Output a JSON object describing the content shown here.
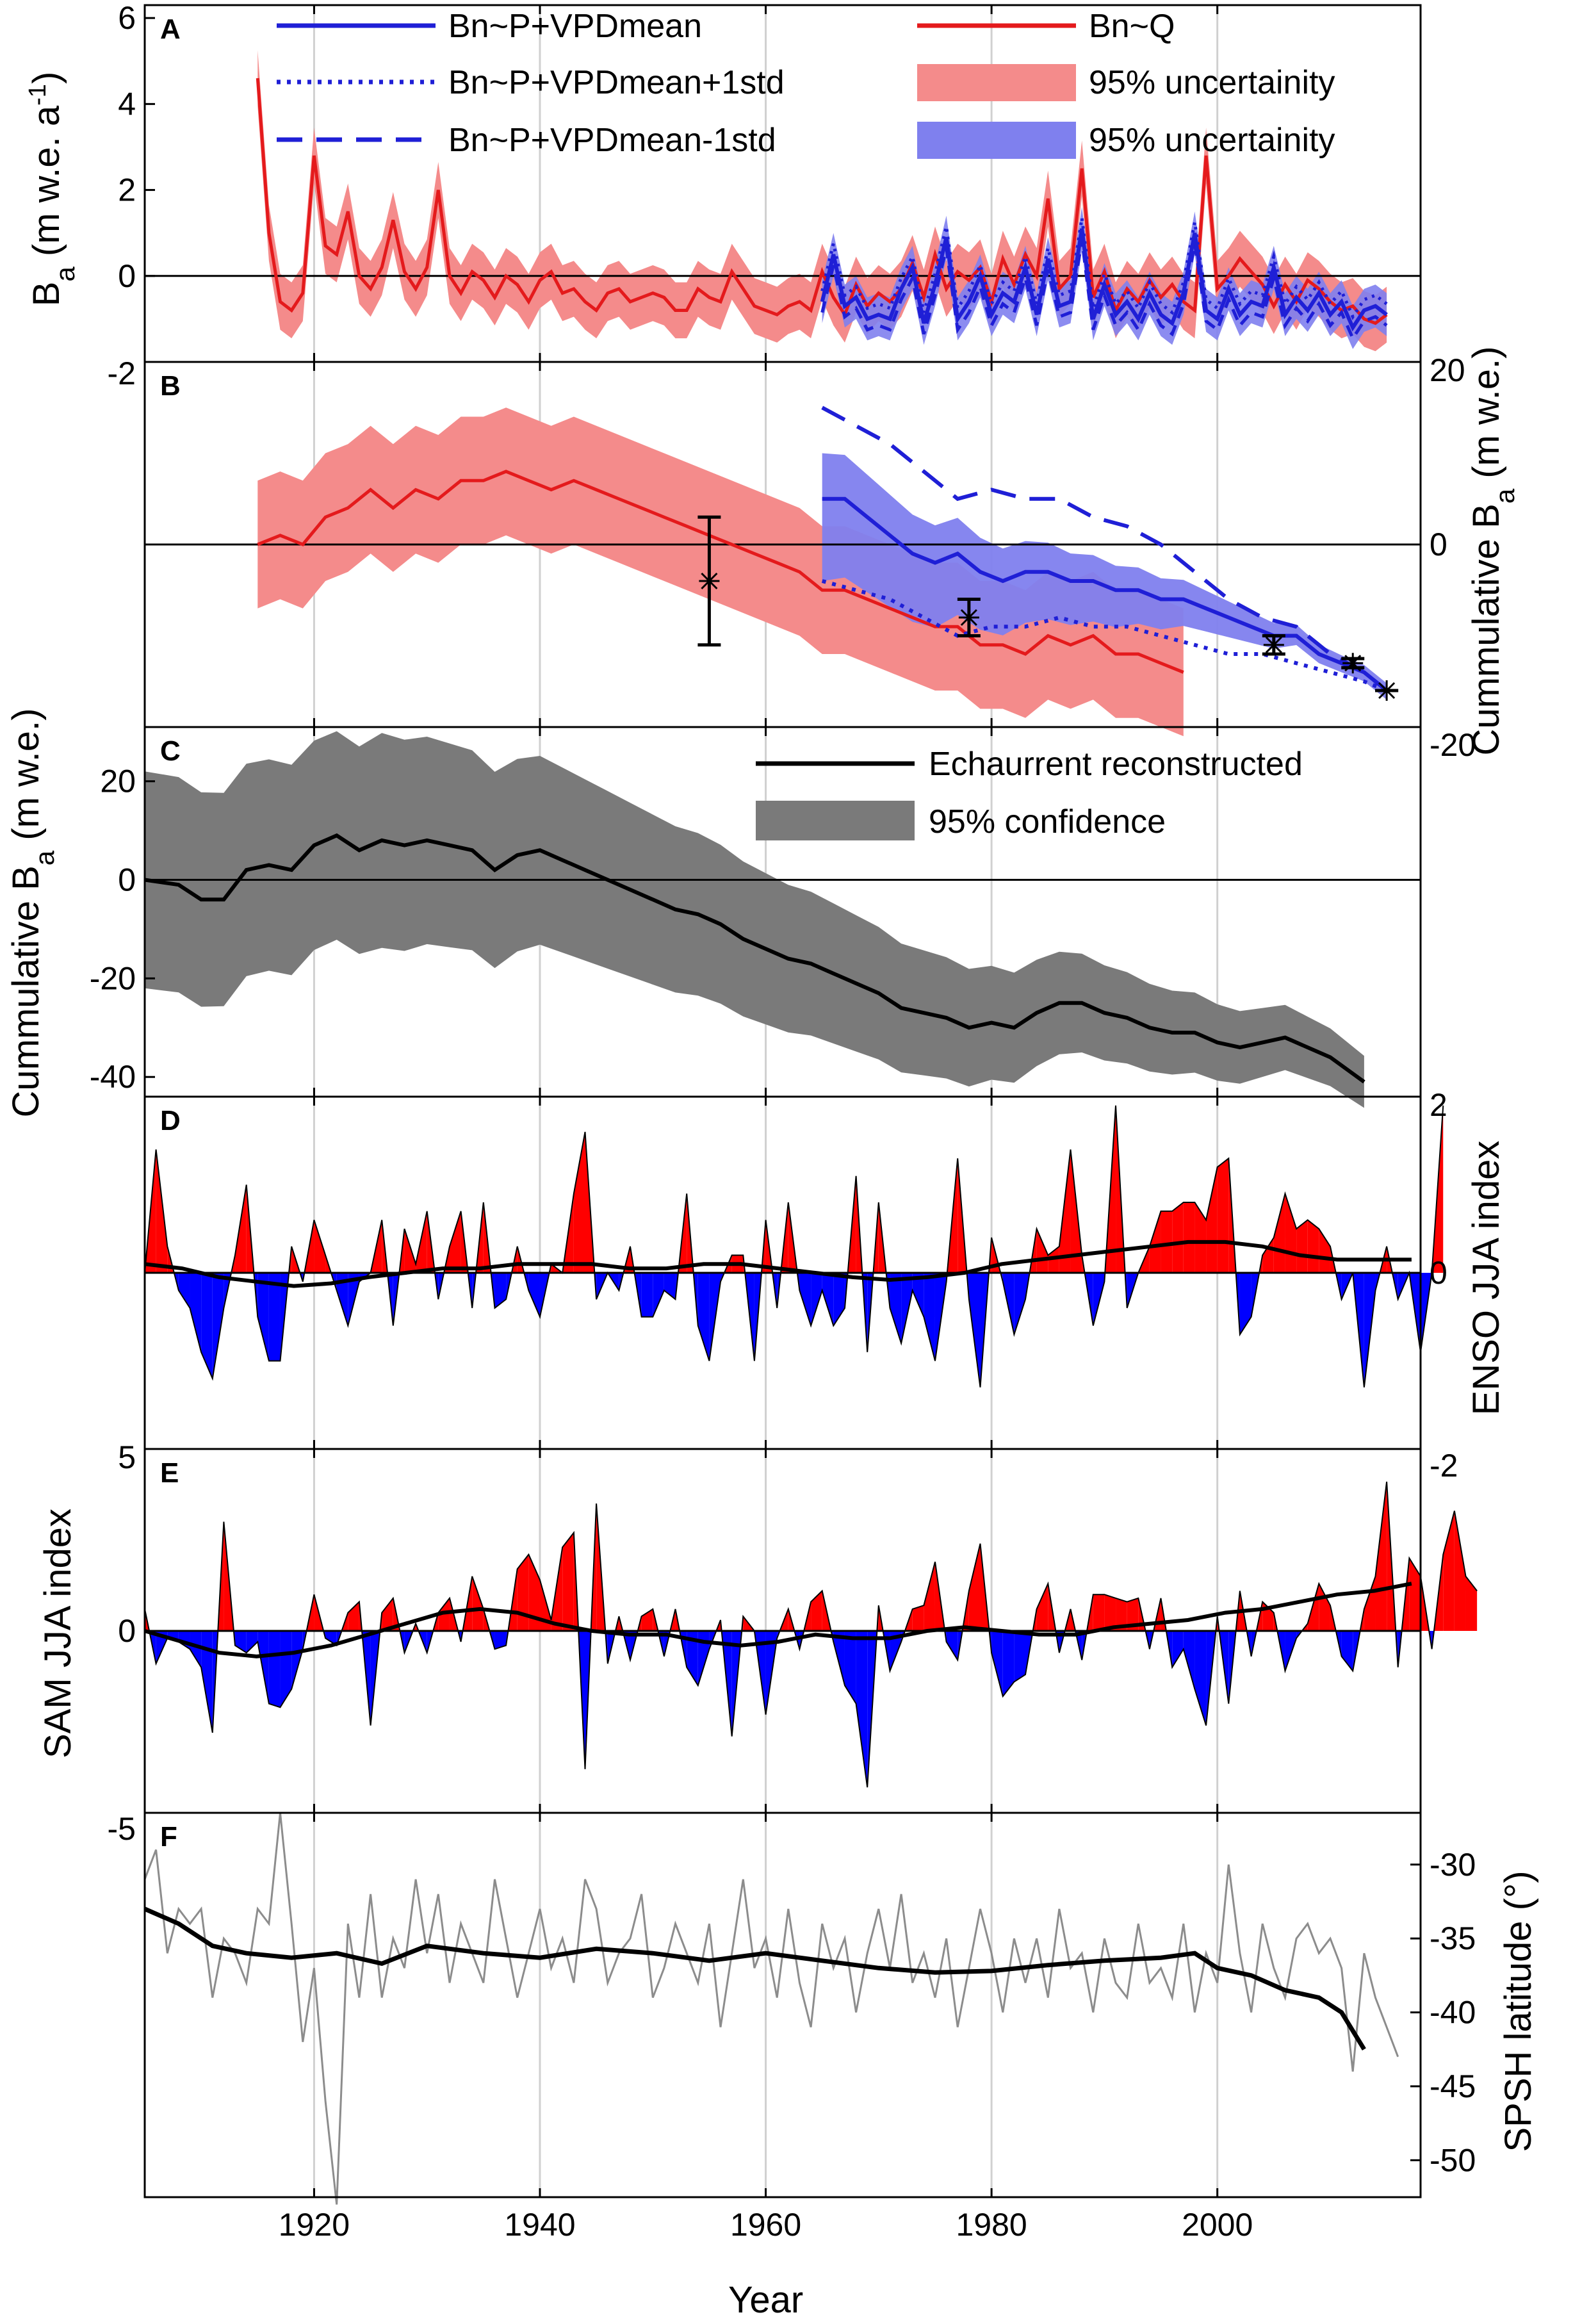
{
  "colors": {
    "red": "#e41a1c",
    "red_band": "#f48b8b",
    "blue": "#1f1fd6",
    "blue_band": "#7f80ee",
    "gray_band": "#7a7a7a",
    "gray_line": "#8c8c8c",
    "enso_pos": "#ff0000",
    "enso_neg": "#0000ff",
    "black": "#000000"
  },
  "chart_data": [
    {
      "panel": "A",
      "type": "line",
      "ylabel": "B_a (m w.e. a^-1)",
      "ylim": [
        -2,
        6.3
      ],
      "yticks": [
        -2,
        0,
        2,
        4,
        6
      ],
      "legend": [
        {
          "label": "Bn~P+VPDmean",
          "style": "solid-blue"
        },
        {
          "label": "Bn~P+VPDmean+1std",
          "style": "dotted-blue"
        },
        {
          "label": "Bn~P+VPDmean-1std",
          "style": "dashed-blue"
        },
        {
          "label": "Bn~Q",
          "style": "solid-red"
        },
        {
          "label": "95% uncertainity",
          "style": "red-band"
        },
        {
          "label": "95% uncertainity",
          "style": "blue-band"
        }
      ],
      "series": [
        {
          "name": "Bn~Q",
          "x_start": 1915,
          "values": [
            4.6,
            1.0,
            -0.6,
            -0.8,
            -0.4,
            2.8,
            0.7,
            0.5,
            1.5,
            0.0,
            -0.3,
            0.2,
            1.3,
            0.1,
            -0.3,
            0.2,
            2.0,
            0.0,
            -0.4,
            0.1,
            -0.1,
            -0.5,
            0.0,
            -0.2,
            -0.6,
            -0.1,
            0.1,
            -0.4,
            -0.3,
            -0.6,
            -0.8,
            -0.4,
            -0.3,
            -0.6,
            -0.5,
            -0.4,
            -0.5,
            -0.8,
            -0.8,
            -0.3,
            -0.5,
            -0.6,
            0.1,
            -0.3,
            -0.7,
            -0.8,
            -0.9,
            -0.7,
            -0.6,
            -0.8,
            0.1,
            -0.5,
            -0.9,
            -0.2,
            -0.7,
            -0.4,
            -0.6,
            -0.3,
            0.3,
            -0.5,
            0.5,
            -0.3,
            0.1,
            -0.1,
            0.2,
            -0.6,
            0.4,
            -0.2,
            0.5,
            0.0,
            1.8,
            -0.3,
            0.0,
            2.5,
            -0.5,
            0.1,
            -0.8,
            -0.3,
            -0.6,
            -0.1,
            -0.5,
            -0.2,
            -0.6,
            -0.8,
            2.8,
            -0.3,
            0.0,
            0.4,
            0.1,
            -0.2,
            -0.7,
            -0.2,
            -0.6,
            -0.1,
            -0.3,
            -0.6,
            -0.8,
            -0.7,
            -1.0,
            -1.1,
            -0.9
          ]
        },
        {
          "name": "Bn~P+VPDmean",
          "x_start": 1965,
          "values": [
            -0.6,
            0.5,
            -0.7,
            -0.5,
            -1.0,
            -0.9,
            -1.0,
            -0.3,
            0.2,
            -1.1,
            -0.2,
            0.9,
            -1.0,
            -0.6,
            0.0,
            -0.9,
            -0.4,
            -0.6,
            0.2,
            -0.9,
            0.4,
            -0.7,
            -0.6,
            1.1,
            -1.0,
            -0.2,
            -0.9,
            -0.6,
            -1.0,
            -0.4,
            -0.9,
            -1.1,
            -0.4,
            1.0,
            -0.8,
            -1.0,
            -0.3,
            -0.9,
            -0.6,
            -0.7,
            0.2,
            -0.9,
            -0.5,
            -0.8,
            -0.4,
            -0.9,
            -0.6,
            -1.2,
            -0.8,
            -0.7,
            -0.9
          ]
        }
      ]
    },
    {
      "panel": "B",
      "type": "line",
      "ylabel": "Cummulative B_a (m w.e.)",
      "ylim": [
        -20,
        20
      ],
      "yticks": [
        -20,
        0,
        20
      ],
      "series": [
        {
          "name": "Bn~Q cumulative",
          "x": [
            1915,
            1917,
            1919,
            1921,
            1923,
            1925,
            1927,
            1929,
            1931,
            1933,
            1935,
            1937,
            1939,
            1941,
            1943,
            1945,
            1947,
            1949,
            1951,
            1953,
            1955,
            1957,
            1959,
            1961,
            1963,
            1965,
            1967,
            1969,
            1971,
            1973,
            1975,
            1977,
            1979,
            1981,
            1983,
            1985,
            1987,
            1989,
            1991,
            1993,
            1995,
            1997
          ],
          "y": [
            0,
            1,
            0,
            3,
            4,
            6,
            4,
            6,
            5,
            7,
            7,
            8,
            7,
            6,
            7,
            6,
            5,
            4,
            3,
            2,
            1,
            0,
            -1,
            -2,
            -3,
            -5,
            -5,
            -6,
            -7,
            -8,
            -9,
            -9,
            -11,
            -11,
            -12,
            -10,
            -11,
            -10,
            -12,
            -12,
            -13,
            -14
          ]
        },
        {
          "name": "Bn~P+VPDmean cumulative",
          "x": [
            1965,
            1967,
            1969,
            1971,
            1973,
            1975,
            1977,
            1979,
            1981,
            1983,
            1985,
            1987,
            1989,
            1991,
            1993,
            1995,
            1997,
            1999,
            2001,
            2003,
            2005,
            2007,
            2009,
            2011,
            2013,
            2015
          ],
          "y": [
            5,
            5,
            3,
            1,
            -1,
            -2,
            -1,
            -3,
            -4,
            -3,
            -3,
            -4,
            -4,
            -5,
            -5,
            -6,
            -6,
            -7,
            -8,
            -9,
            -10,
            -10,
            -12,
            -13,
            -14,
            -16
          ]
        },
        {
          "name": "+1std",
          "x": [
            1965,
            1968,
            1971,
            1974,
            1977,
            1980,
            1983,
            1986,
            1989,
            1992,
            1995,
            1998,
            2001,
            2004,
            2007,
            2010,
            2013,
            2015
          ],
          "y": [
            15,
            13,
            11,
            8,
            5,
            6,
            5,
            5,
            3,
            2,
            0,
            -3,
            -6,
            -8,
            -9,
            -12,
            -14,
            -16
          ]
        },
        {
          "name": "-1std",
          "x": [
            1965,
            1968,
            1971,
            1974,
            1977,
            1980,
            1983,
            1986,
            1989,
            1992,
            1995,
            1998,
            2001,
            2004,
            2007,
            2010,
            2013,
            2015
          ],
          "y": [
            -4,
            -5,
            -6,
            -8,
            -10,
            -9,
            -9,
            -8,
            -9,
            -9,
            -10,
            -11,
            -12,
            -12,
            -13,
            -14,
            -15,
            -16
          ]
        }
      ],
      "errorbars": [
        {
          "x": 1955,
          "y": -4,
          "lo": -11,
          "hi": 3
        },
        {
          "x": 1978,
          "y": -8,
          "lo": -10,
          "hi": -6
        },
        {
          "x": 2005,
          "y": -11,
          "lo": -12,
          "hi": -10
        },
        {
          "x": 2012,
          "y": -13,
          "lo": -13.5,
          "hi": -12.5
        },
        {
          "x": 2015,
          "y": -16,
          "lo": -16,
          "hi": -16
        }
      ]
    },
    {
      "panel": "C",
      "type": "area",
      "ylabel": "Cummulative B_a (m w.e.)",
      "ylim": [
        -44,
        31
      ],
      "yticks": [
        -40,
        -20,
        0,
        20
      ],
      "legend": [
        {
          "label": "Echaurrent reconstructed",
          "style": "solid-black"
        },
        {
          "label": "95% confidence",
          "style": "gray-band"
        }
      ],
      "series": [
        {
          "name": "Echaurrent reconstructed",
          "x": [
            1905,
            1908,
            1910,
            1912,
            1914,
            1916,
            1918,
            1920,
            1922,
            1924,
            1926,
            1928,
            1930,
            1932,
            1934,
            1936,
            1938,
            1940,
            1942,
            1944,
            1946,
            1948,
            1950,
            1952,
            1954,
            1956,
            1958,
            1960,
            1962,
            1964,
            1966,
            1968,
            1970,
            1972,
            1974,
            1976,
            1978,
            1980,
            1982,
            1984,
            1986,
            1988,
            1990,
            1992,
            1994,
            1996,
            1998,
            2000,
            2002,
            2004,
            2006,
            2008,
            2010,
            2013
          ],
          "y": [
            0,
            -1,
            -4,
            -4,
            2,
            3,
            2,
            7,
            9,
            6,
            8,
            7,
            8,
            7,
            6,
            2,
            5,
            6,
            4,
            2,
            0,
            -2,
            -4,
            -6,
            -7,
            -9,
            -12,
            -14,
            -16,
            -17,
            -19,
            -21,
            -23,
            -26,
            -27,
            -28,
            -30,
            -29,
            -30,
            -27,
            -25,
            -25,
            -27,
            -28,
            -30,
            -31,
            -31,
            -33,
            -34,
            -33,
            -32,
            -34,
            -36,
            -41
          ]
        }
      ]
    },
    {
      "panel": "D",
      "type": "area",
      "ylabel": "ENSO JJA index",
      "ylim": [
        -2,
        2
      ],
      "yticks": [
        -2,
        0,
        2
      ],
      "x_start": 1905,
      "values": [
        0.0,
        1.4,
        0.3,
        -0.2,
        -0.4,
        -0.9,
        -1.2,
        -0.4,
        0.2,
        1.0,
        -0.5,
        -1.0,
        -1.0,
        0.3,
        -0.1,
        0.6,
        0.2,
        -0.2,
        -0.6,
        -0.1,
        0.0,
        0.6,
        -0.6,
        0.5,
        0.1,
        0.7,
        -0.3,
        0.3,
        0.7,
        -0.4,
        0.8,
        -0.4,
        -0.3,
        0.3,
        -0.2,
        -0.5,
        0.1,
        0.0,
        0.9,
        1.6,
        -0.3,
        0.0,
        -0.2,
        0.3,
        -0.5,
        -0.5,
        -0.2,
        -0.3,
        0.9,
        -0.6,
        -1.0,
        -0.1,
        0.2,
        0.2,
        -1.0,
        0.6,
        -0.4,
        0.8,
        -0.2,
        -0.6,
        -0.2,
        -0.6,
        -0.4,
        1.1,
        -0.9,
        0.8,
        -0.4,
        -0.8,
        -0.2,
        -0.5,
        -1.0,
        -0.1,
        1.3,
        -0.3,
        -1.3,
        0.4,
        -0.1,
        -0.7,
        -0.3,
        0.5,
        0.2,
        0.3,
        1.4,
        0.2,
        -0.6,
        -0.1,
        1.9,
        -0.4,
        0.0,
        0.3,
        0.7,
        0.7,
        0.8,
        0.8,
        0.6,
        1.2,
        1.3,
        -0.7,
        -0.5,
        0.2,
        0.4,
        0.9,
        0.5,
        0.6,
        0.5,
        0.3,
        -0.3,
        0.0,
        -1.3,
        -0.2,
        0.3,
        -0.3,
        0.0,
        -0.9,
        0.0,
        1.9
      ],
      "smooth": [
        0.1,
        0.05,
        -0.05,
        -0.1,
        -0.15,
        -0.12,
        -0.05,
        0.0,
        0.05,
        0.05,
        0.1,
        0.1,
        0.1,
        0.05,
        0.05,
        0.1,
        0.1,
        0.05,
        0.0,
        -0.05,
        -0.08,
        -0.05,
        0.0,
        0.1,
        0.15,
        0.2,
        0.25,
        0.3,
        0.35,
        0.35,
        0.3,
        0.2,
        0.15,
        0.15,
        0.15
      ],
      "smooth_x_step": 3.3
    },
    {
      "panel": "E",
      "type": "area",
      "ylabel": "SAM JJA index",
      "ylim": [
        -5,
        5
      ],
      "yticks": [
        -5,
        0,
        5
      ],
      "x_start": 1905,
      "values": [
        0.6,
        -0.9,
        -0.2,
        -0.3,
        -0.5,
        -1.0,
        -2.8,
        3.0,
        -0.4,
        -0.6,
        -0.3,
        -2.0,
        -2.1,
        -1.6,
        -0.5,
        1.0,
        -0.2,
        -0.4,
        0.5,
        0.8,
        -2.6,
        0.5,
        0.9,
        -0.6,
        0.2,
        -0.6,
        0.5,
        0.9,
        -0.3,
        1.5,
        0.6,
        -0.5,
        -0.4,
        1.7,
        2.1,
        1.4,
        0.3,
        2.3,
        2.7,
        -3.8,
        3.5,
        -0.9,
        0.4,
        -0.8,
        0.4,
        0.6,
        -0.7,
        0.6,
        -1.0,
        -1.5,
        -0.5,
        0.3,
        -2.9,
        0.4,
        0.0,
        -2.3,
        -0.2,
        0.6,
        -0.5,
        0.8,
        1.1,
        -0.3,
        -1.5,
        -2.0,
        -4.3,
        0.7,
        -1.1,
        -0.3,
        0.6,
        0.7,
        1.9,
        -0.3,
        -0.8,
        1.1,
        2.4,
        -0.6,
        -1.8,
        -1.4,
        -1.2,
        0.6,
        1.3,
        -0.6,
        0.6,
        -0.8,
        1.0,
        1.0,
        0.9,
        0.8,
        0.9,
        -0.5,
        0.9,
        -1.0,
        -0.5,
        -1.6,
        -2.6,
        0.4,
        -2.0,
        1.1,
        -0.7,
        0.8,
        0.5,
        -1.1,
        -0.2,
        0.2,
        1.3,
        0.7,
        -0.7,
        -1.1,
        0.6,
        1.5,
        4.1,
        -1.0,
        2.0,
        1.5,
        -0.5,
        2.1,
        3.3,
        1.5,
        1.1
      ],
      "smooth": [
        0.0,
        -0.3,
        -0.6,
        -0.7,
        -0.6,
        -0.4,
        -0.1,
        0.2,
        0.5,
        0.6,
        0.5,
        0.2,
        0.0,
        -0.1,
        -0.1,
        -0.3,
        -0.4,
        -0.3,
        -0.1,
        -0.2,
        -0.2,
        0.0,
        0.1,
        0.0,
        -0.1,
        -0.1,
        0.1,
        0.2,
        0.3,
        0.5,
        0.6,
        0.8,
        1.0,
        1.1,
        1.3
      ],
      "smooth_x_step": 3.3
    },
    {
      "panel": "F",
      "type": "line",
      "ylabel": "SPSH latitude (°)",
      "ylim": [
        -52.5,
        -26.5
      ],
      "yticks": [
        -50,
        -45,
        -40,
        -35,
        -30
      ],
      "xlabel": "Year",
      "xlim": [
        1905,
        2018
      ],
      "xticks": [
        1920,
        1940,
        1960,
        1980,
        2000
      ],
      "series": [
        {
          "name": "annual",
          "x_start": 1905,
          "values": [
            -31,
            -29,
            -36,
            -33,
            -34,
            -33,
            -39,
            -35,
            -36,
            -38,
            -33,
            -34,
            -26.5,
            -34,
            -42,
            -37,
            -46,
            -53,
            -34,
            -39,
            -32,
            -39,
            -35,
            -37,
            -31,
            -36,
            -32,
            -38,
            -34,
            -36,
            -38,
            -31,
            -35,
            -39,
            -36,
            -33,
            -37,
            -35,
            -38,
            -31,
            -33,
            -38,
            -36,
            -35,
            -32,
            -39,
            -37,
            -34,
            -36,
            -38,
            -34,
            -41,
            -36,
            -31,
            -37,
            -35,
            -39,
            -33,
            -38,
            -41,
            -34,
            -37,
            -35,
            -40,
            -36,
            -33,
            -37,
            -32,
            -38,
            -36,
            -39,
            -35,
            -41,
            -37,
            -33,
            -36,
            -40,
            -35,
            -38,
            -35,
            -39,
            -33,
            -37,
            -36,
            -40,
            -35,
            -38,
            -39,
            -34,
            -38,
            -37,
            -39,
            -34,
            -40,
            -36,
            -38,
            -30,
            -36,
            -40,
            -34,
            -37,
            -39,
            -35,
            -34,
            -36,
            -35,
            -37,
            -44,
            -36,
            -39,
            -41,
            -43
          ]
        },
        {
          "name": "smoothed",
          "x": [
            1905,
            1908,
            1911,
            1914,
            1918,
            1922,
            1926,
            1930,
            1935,
            1940,
            1945,
            1950,
            1955,
            1960,
            1965,
            1970,
            1975,
            1980,
            1985,
            1990,
            1995,
            1998,
            2000,
            2003,
            2006,
            2009,
            2011,
            2013
          ],
          "y": [
            -33,
            -34,
            -35.5,
            -36,
            -36.3,
            -36,
            -36.7,
            -35.5,
            -36,
            -36.3,
            -35.7,
            -36,
            -36.5,
            -36,
            -36.5,
            -37,
            -37.3,
            -37.2,
            -36.8,
            -36.5,
            -36.3,
            -36,
            -37,
            -37.5,
            -38.5,
            -39,
            -40,
            -42.5
          ]
        }
      ]
    }
  ],
  "axes": {
    "left_labels": {
      "A": "B_a (m w.e. a^-1)",
      "C": "Cummulative B_a (m w.e.)",
      "E": "SAM JJA index"
    },
    "right_labels": {
      "B": "Cummulative B_a (m w.e.)",
      "D": "ENSO JJA index",
      "F": "SPSH latitude (°)"
    }
  }
}
